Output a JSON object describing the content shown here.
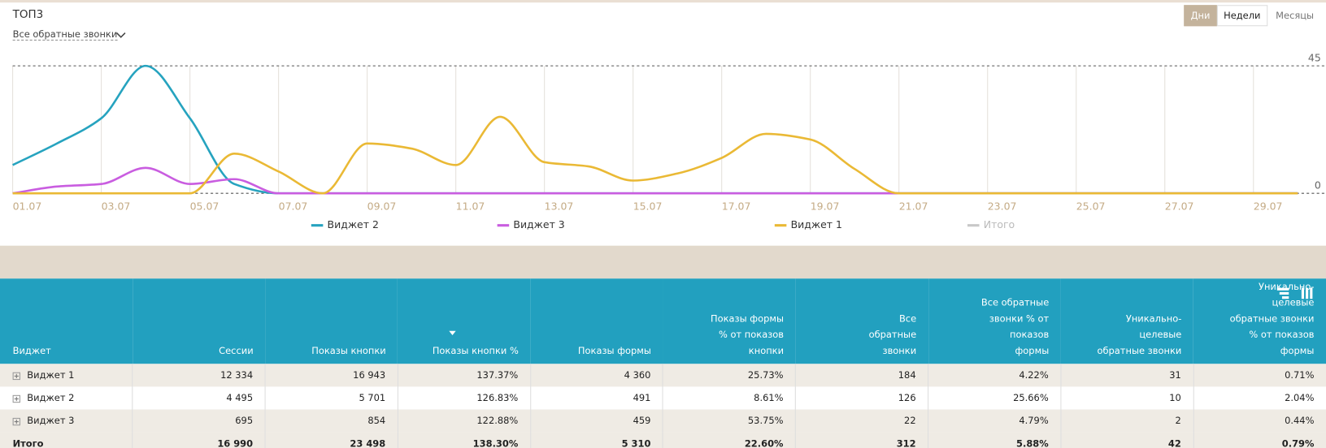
{
  "header": {
    "title": "ТОП3",
    "filter": "Все обратные звонки",
    "periods": [
      "Дни",
      "Недели",
      "Месяцы"
    ],
    "active_period_index": 0
  },
  "chart_data": {
    "type": "line",
    "categories": [
      "01.07",
      null,
      "03.07",
      null,
      "05.07",
      null,
      "07.07",
      null,
      "09.07",
      null,
      "11.07",
      null,
      "13.07",
      null,
      "15.07",
      null,
      "17.07",
      null,
      "19.07",
      null,
      "21.07",
      null,
      "23.07",
      null,
      "25.07",
      null,
      "27.07",
      null,
      "29.07",
      null
    ],
    "series": [
      {
        "name": "Виджет 2",
        "color": "#26a3bf",
        "values": [
          10,
          17.6,
          26.5,
          45,
          26.5,
          3.3,
          0,
          0,
          0,
          0,
          0,
          0,
          0,
          0,
          0,
          0,
          0,
          0,
          0,
          0,
          0,
          0,
          0,
          0,
          0,
          0,
          0,
          0,
          0,
          0
        ]
      },
      {
        "name": "Виджет 3",
        "color": "#c95de0",
        "values": [
          0,
          2.4,
          3.3,
          9,
          3.3,
          5,
          0,
          0,
          0,
          0,
          0,
          0,
          0,
          0,
          0,
          0,
          0,
          0,
          0,
          0,
          0,
          0,
          0,
          0,
          0,
          0,
          0,
          0,
          0,
          0
        ]
      },
      {
        "name": "Виджет 1",
        "color": "#eab935",
        "values": [
          0,
          0,
          0,
          0,
          0,
          14,
          7.7,
          0,
          17.6,
          15.8,
          10,
          27,
          11,
          9.5,
          4.5,
          7,
          12.5,
          21,
          19,
          8.6,
          0,
          0,
          0,
          0,
          0,
          0,
          0,
          0,
          0,
          0
        ]
      },
      {
        "name": "Итого",
        "color": "#c8c8c8",
        "visible": false,
        "values": [
          null,
          null,
          null,
          null,
          null,
          null,
          null,
          null,
          null,
          null,
          null,
          null,
          null,
          null,
          null,
          null,
          null,
          null,
          null,
          null,
          null,
          null,
          null,
          null,
          null,
          null,
          null,
          null,
          null,
          null
        ]
      }
    ],
    "ylim": [
      0,
      45
    ],
    "yticks": [
      0,
      45
    ],
    "grid": true
  },
  "table": {
    "columns": [
      "Виджет",
      "Сессии",
      "Показы кнопки",
      "Показы кнопки %",
      "Показы формы",
      "Показы формы % от показов кнопки",
      "Все обратные звонки",
      "Все обратные звонки % от показов формы",
      "Уникально-целевые обратные звонки",
      "Уникально-целевые обратные звонки % от показов формы"
    ],
    "rows": [
      [
        "Виджет 1",
        "12 334",
        "16 943",
        "137.37%",
        "4 360",
        "25.73%",
        "184",
        "4.22%",
        "31",
        "0.71%"
      ],
      [
        "Виджет 2",
        "4 495",
        "5 701",
        "126.83%",
        "491",
        "8.61%",
        "126",
        "25.66%",
        "10",
        "2.04%"
      ],
      [
        "Виджет 3",
        "695",
        "854",
        "122.88%",
        "459",
        "53.75%",
        "22",
        "4.79%",
        "2",
        "0.44%"
      ]
    ],
    "total": [
      "Итого",
      "16 990",
      "23 498",
      "138.30%",
      "5 310",
      "22.60%",
      "312",
      "5.88%",
      "42",
      "0.79%"
    ]
  }
}
